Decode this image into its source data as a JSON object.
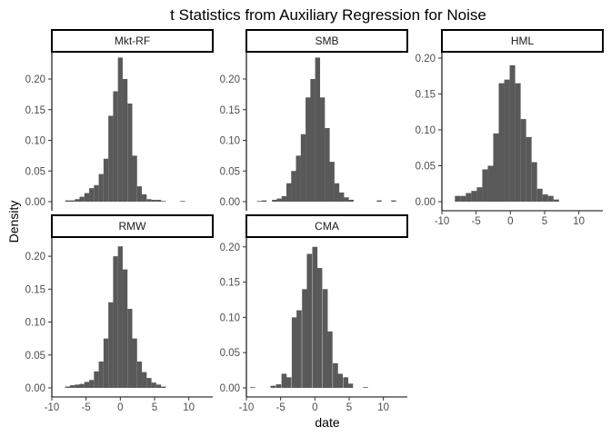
{
  "chart_data": {
    "type": "bar",
    "title": "t Statistics from Auxiliary Regression for Noise",
    "xlabel": "date",
    "ylabel": "Density",
    "xlim": [
      -10,
      13.5
    ],
    "x_ticks": [
      -10,
      -5,
      0,
      5,
      10
    ],
    "y_ticks": [
      0,
      0.05,
      0.1,
      0.15,
      0.2
    ],
    "y_tick_labels": [
      "0.00",
      "0.05",
      "0.10",
      "0.15",
      "0.20"
    ],
    "bar_color": "#595959",
    "grid": false,
    "legend": "none",
    "facets": [
      {
        "name": "Mkt-RF",
        "ylim": [
          0,
          0.24
        ],
        "bin_width": 0.7,
        "bars": [
          [
            -7.7,
            0.002
          ],
          [
            -7.0,
            0.002
          ],
          [
            -6.3,
            0.004
          ],
          [
            -5.6,
            0.008
          ],
          [
            -4.9,
            0.014
          ],
          [
            -4.2,
            0.022
          ],
          [
            -3.5,
            0.027
          ],
          [
            -2.8,
            0.045
          ],
          [
            -2.1,
            0.07
          ],
          [
            -1.4,
            0.14
          ],
          [
            -0.7,
            0.18
          ],
          [
            0.0,
            0.235
          ],
          [
            0.7,
            0.2
          ],
          [
            1.4,
            0.16
          ],
          [
            2.1,
            0.075
          ],
          [
            2.8,
            0.025
          ],
          [
            3.5,
            0.012
          ],
          [
            4.2,
            0.004
          ],
          [
            4.9,
            0.003
          ],
          [
            5.6,
            0.003
          ],
          [
            6.3,
            0.001
          ],
          [
            9.1,
            0.001
          ]
        ]
      },
      {
        "name": "SMB",
        "ylim": [
          0,
          0.24
        ],
        "bin_width": 0.72,
        "bars": [
          [
            -8.1,
            0.001
          ],
          [
            -7.4,
            0.002
          ],
          [
            -5.9,
            0.003
          ],
          [
            -5.2,
            0.005
          ],
          [
            -4.5,
            0.009
          ],
          [
            -3.8,
            0.03
          ],
          [
            -3.1,
            0.05
          ],
          [
            -2.4,
            0.075
          ],
          [
            -1.7,
            0.11
          ],
          [
            -1.0,
            0.17
          ],
          [
            -0.3,
            0.2
          ],
          [
            0.4,
            0.235
          ],
          [
            1.1,
            0.17
          ],
          [
            1.8,
            0.12
          ],
          [
            2.5,
            0.065
          ],
          [
            3.2,
            0.03
          ],
          [
            3.9,
            0.015
          ],
          [
            4.6,
            0.007
          ],
          [
            5.3,
            0.003
          ],
          [
            9.4,
            0.002
          ],
          [
            11.5,
            0.002
          ]
        ]
      },
      {
        "name": "HML",
        "ylim": [
          0,
          0.205
        ],
        "bin_width": 0.8,
        "bars": [
          [
            -7.7,
            0.008
          ],
          [
            -6.9,
            0.008
          ],
          [
            -6.1,
            0.012
          ],
          [
            -5.3,
            0.015
          ],
          [
            -4.5,
            0.02
          ],
          [
            -3.7,
            0.045
          ],
          [
            -2.9,
            0.05
          ],
          [
            -2.1,
            0.095
          ],
          [
            -1.3,
            0.165
          ],
          [
            -0.5,
            0.17
          ],
          [
            0.3,
            0.19
          ],
          [
            1.1,
            0.165
          ],
          [
            1.9,
            0.115
          ],
          [
            2.7,
            0.09
          ],
          [
            3.5,
            0.055
          ],
          [
            4.3,
            0.018
          ],
          [
            5.1,
            0.01
          ],
          [
            5.9,
            0.008
          ],
          [
            6.7,
            0.003
          ]
        ]
      },
      {
        "name": "RMW",
        "ylim": [
          0,
          0.225
        ],
        "bin_width": 0.7,
        "bars": [
          [
            -7.7,
            0.002
          ],
          [
            -7.0,
            0.004
          ],
          [
            -6.3,
            0.005
          ],
          [
            -5.6,
            0.006
          ],
          [
            -4.9,
            0.009
          ],
          [
            -4.2,
            0.012
          ],
          [
            -3.5,
            0.025
          ],
          [
            -2.8,
            0.04
          ],
          [
            -2.1,
            0.075
          ],
          [
            -1.4,
            0.13
          ],
          [
            -0.7,
            0.2
          ],
          [
            0.0,
            0.215
          ],
          [
            0.7,
            0.18
          ],
          [
            1.4,
            0.12
          ],
          [
            2.1,
            0.075
          ],
          [
            2.8,
            0.04
          ],
          [
            3.5,
            0.024
          ],
          [
            4.2,
            0.015
          ],
          [
            4.9,
            0.008
          ],
          [
            5.6,
            0.005
          ],
          [
            6.3,
            0.002
          ]
        ]
      },
      {
        "name": "CMA",
        "ylim": [
          0,
          0.21
        ],
        "bin_width": 0.75,
        "bars": [
          [
            -9.1,
            0.001
          ],
          [
            -6.1,
            0.003
          ],
          [
            -5.3,
            0.005
          ],
          [
            -4.5,
            0.02
          ],
          [
            -3.8,
            0.015
          ],
          [
            -3.0,
            0.1
          ],
          [
            -2.3,
            0.11
          ],
          [
            -1.5,
            0.14
          ],
          [
            -0.8,
            0.19
          ],
          [
            0.0,
            0.2
          ],
          [
            0.7,
            0.17
          ],
          [
            1.5,
            0.14
          ],
          [
            2.2,
            0.08
          ],
          [
            3.0,
            0.035
          ],
          [
            3.7,
            0.02
          ],
          [
            4.5,
            0.015
          ],
          [
            5.2,
            0.006
          ],
          [
            7.4,
            0.001
          ]
        ]
      }
    ]
  }
}
